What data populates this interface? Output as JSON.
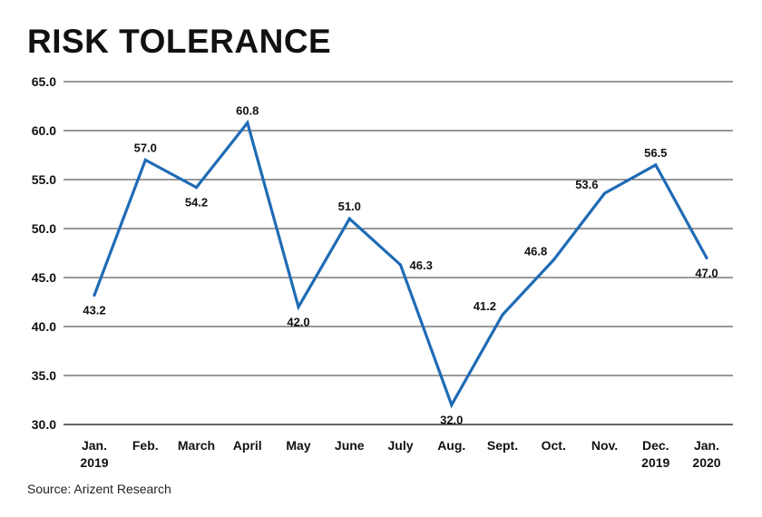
{
  "title": "RISK TOLERANCE",
  "source": "Source: Arizent Research",
  "colors": {
    "line": "#1f6bb5",
    "grid": "#333333"
  },
  "chart_data": {
    "type": "line",
    "title": "RISK TOLERANCE",
    "xlabel": "",
    "ylabel": "",
    "categories": [
      [
        "Jan.",
        "2019"
      ],
      [
        "Feb."
      ],
      [
        "March"
      ],
      [
        "April"
      ],
      [
        "May"
      ],
      [
        "June"
      ],
      [
        "July"
      ],
      [
        "Aug."
      ],
      [
        "Sept."
      ],
      [
        "Oct."
      ],
      [
        "Nov."
      ],
      [
        "Dec.",
        "2019"
      ],
      [
        "Jan.",
        "2020"
      ]
    ],
    "values": [
      43.2,
      57.0,
      54.2,
      60.8,
      42.0,
      51.0,
      46.3,
      32.0,
      41.2,
      46.8,
      53.6,
      56.5,
      47.0
    ],
    "data_labels": [
      "43.2",
      "57.0",
      "54.2",
      "60.8",
      "42.0",
      "51.0",
      "46.3",
      "32.0",
      "41.2",
      "46.8",
      "53.6",
      "56.5",
      "47.0"
    ],
    "label_side": [
      "below",
      "above",
      "below",
      "above",
      "below",
      "above",
      "right",
      "below",
      "left",
      "left",
      "left",
      "above",
      "below"
    ],
    "y_ticks": [
      30.0,
      35.0,
      40.0,
      45.0,
      50.0,
      55.0,
      60.0,
      65.0
    ],
    "y_tick_labels": [
      "30.0",
      "35.0",
      "40.0",
      "45.0",
      "50.0",
      "55.0",
      "60.0",
      "65.0"
    ],
    "ylim": [
      30.0,
      65.0
    ],
    "grid": true,
    "legend": "none"
  }
}
